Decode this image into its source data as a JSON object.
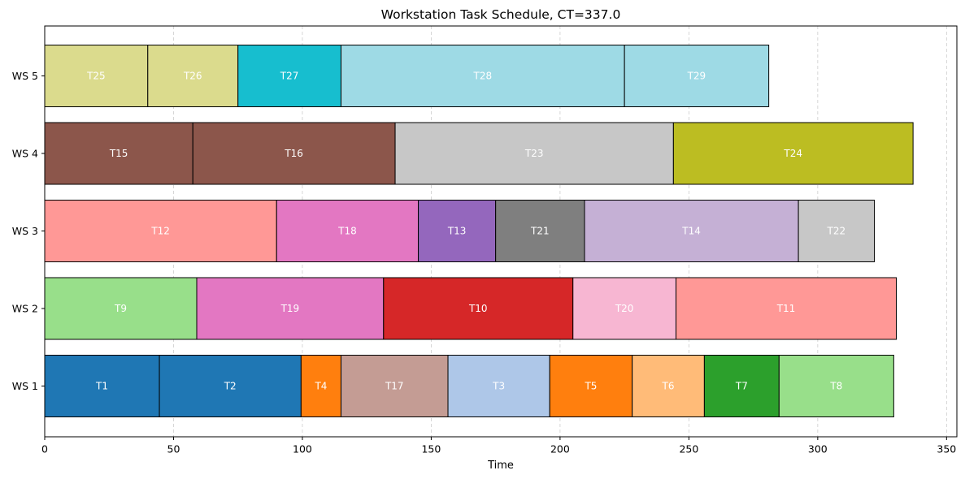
{
  "chart_data": {
    "type": "gantt",
    "title": "Workstation Task Schedule, CT=337.0",
    "xlabel": "Time",
    "ylabel": "",
    "xlim": [
      0,
      354
    ],
    "x_ticks": [
      0,
      50,
      100,
      150,
      200,
      250,
      300,
      350
    ],
    "grid": "vertical dashed",
    "stations": [
      {
        "name": "WS 1",
        "tasks": [
          {
            "label": "T1",
            "start": 0,
            "end": 44.5,
            "color": "#1f77b4"
          },
          {
            "label": "T2",
            "start": 44.5,
            "end": 99.5,
            "color": "#1f77b4"
          },
          {
            "label": "T4",
            "start": 99.5,
            "end": 115,
            "color": "#ff7f0e"
          },
          {
            "label": "T17",
            "start": 115,
            "end": 156.5,
            "color": "#c49c94"
          },
          {
            "label": "T3",
            "start": 156.5,
            "end": 196,
            "color": "#aec7e8"
          },
          {
            "label": "T5",
            "start": 196,
            "end": 228,
            "color": "#ff7f0e"
          },
          {
            "label": "T6",
            "start": 228,
            "end": 256,
            "color": "#ffbb78"
          },
          {
            "label": "T7",
            "start": 256,
            "end": 285,
            "color": "#2ca02c"
          },
          {
            "label": "T8",
            "start": 285,
            "end": 329.5,
            "color": "#98df8a"
          }
        ]
      },
      {
        "name": "WS 2",
        "tasks": [
          {
            "label": "T9",
            "start": 0,
            "end": 59,
            "color": "#98df8a"
          },
          {
            "label": "T19",
            "start": 59,
            "end": 131.5,
            "color": "#e377c2"
          },
          {
            "label": "T10",
            "start": 131.5,
            "end": 205,
            "color": "#d62728"
          },
          {
            "label": "T20",
            "start": 205,
            "end": 245,
            "color": "#f7b6d2"
          },
          {
            "label": "T11",
            "start": 245,
            "end": 330.5,
            "color": "#ff9896"
          }
        ]
      },
      {
        "name": "WS 3",
        "tasks": [
          {
            "label": "T12",
            "start": 0,
            "end": 90,
            "color": "#ff9896"
          },
          {
            "label": "T18",
            "start": 90,
            "end": 145,
            "color": "#e377c2"
          },
          {
            "label": "T13",
            "start": 145,
            "end": 175,
            "color": "#9467bd"
          },
          {
            "label": "T21",
            "start": 175,
            "end": 209.5,
            "color": "#7f7f7f"
          },
          {
            "label": "T14",
            "start": 209.5,
            "end": 292.5,
            "color": "#c5b0d5"
          },
          {
            "label": "T22",
            "start": 292.5,
            "end": 322,
            "color": "#c7c7c7"
          }
        ]
      },
      {
        "name": "WS 4",
        "tasks": [
          {
            "label": "T15",
            "start": 0,
            "end": 57.5,
            "color": "#8c564b"
          },
          {
            "label": "T16",
            "start": 57.5,
            "end": 136,
            "color": "#8c564b"
          },
          {
            "label": "T23",
            "start": 136,
            "end": 244,
            "color": "#c7c7c7"
          },
          {
            "label": "T24",
            "start": 244,
            "end": 337,
            "color": "#bcbd22"
          }
        ]
      },
      {
        "name": "WS 5",
        "tasks": [
          {
            "label": "T25",
            "start": 0,
            "end": 40,
            "color": "#dbdb8d"
          },
          {
            "label": "T26",
            "start": 40,
            "end": 75,
            "color": "#dbdb8d"
          },
          {
            "label": "T27",
            "start": 75,
            "end": 115,
            "color": "#17becf"
          },
          {
            "label": "T28",
            "start": 115,
            "end": 225,
            "color": "#9edae5"
          },
          {
            "label": "T29",
            "start": 225,
            "end": 281,
            "color": "#9edae5"
          }
        ]
      }
    ]
  }
}
